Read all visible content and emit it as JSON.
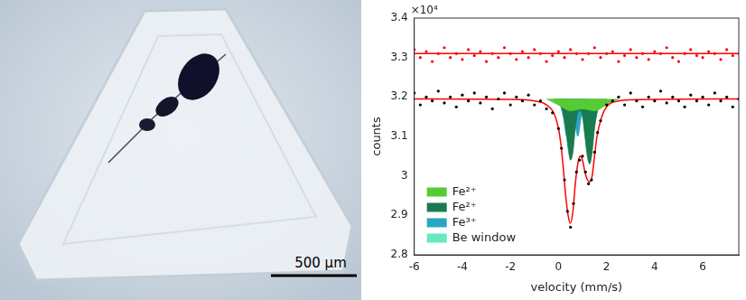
{
  "image": {
    "scale_bar_label": "500 μm"
  },
  "chart_data": {
    "type": "scatter",
    "x_label": "velocity (mm/s)",
    "y_label": "counts",
    "y_exponent_label": "×10⁴",
    "xlim": [
      -6,
      7.5
    ],
    "xticks": [
      -6,
      -4,
      -2,
      0,
      2,
      4,
      6
    ],
    "ylim": [
      2.8,
      3.4
    ],
    "yticks": [
      2.8,
      2.9,
      3,
      3.1,
      3.2,
      3.3,
      3.4
    ],
    "grid": false,
    "legend": "lower left",
    "series": [
      {
        "type": "scatter",
        "marker": "dot",
        "color": "#000000",
        "x": [
          -6,
          -5.75,
          -5.5,
          -5.25,
          -5,
          -4.75,
          -4.5,
          -4.25,
          -4,
          -3.75,
          -3.5,
          -3.25,
          -3,
          -2.75,
          -2.5,
          -2.25,
          -2,
          -1.75,
          -1.5,
          -1.25,
          -1,
          -0.75,
          -0.5,
          -0.25,
          0,
          0.125,
          0.25,
          0.375,
          0.5,
          0.625,
          0.75,
          0.875,
          1,
          1.125,
          1.25,
          1.375,
          1.5,
          1.625,
          1.75,
          2,
          2.25,
          2.5,
          2.75,
          3,
          3.25,
          3.5,
          3.75,
          4,
          4.25,
          4.5,
          4.75,
          5,
          5.25,
          5.5,
          5.75,
          6,
          6.25,
          6.5,
          6.75,
          7,
          7.25,
          7.5
        ],
        "values": [
          3.21,
          3.18,
          3.2,
          3.19,
          3.215,
          3.185,
          3.2,
          3.175,
          3.205,
          3.19,
          3.21,
          3.185,
          3.2,
          3.17,
          3.195,
          3.21,
          3.18,
          3.2,
          3.19,
          3.205,
          3.18,
          3.19,
          3.17,
          3.16,
          3.12,
          3.07,
          2.99,
          2.91,
          2.87,
          2.93,
          3.01,
          3.04,
          3.05,
          3.01,
          2.98,
          2.99,
          3.06,
          3.11,
          3.14,
          3.18,
          3.19,
          3.2,
          3.18,
          3.21,
          3.19,
          3.175,
          3.2,
          3.19,
          3.215,
          3.185,
          3.2,
          3.19,
          3.175,
          3.205,
          3.19,
          3.2,
          3.18,
          3.21,
          3.19,
          3.2,
          3.175,
          3.195
        ]
      },
      {
        "type": "scatter",
        "marker": "dot",
        "color": "#ff0000",
        "x": [
          -6,
          -5.75,
          -5.5,
          -5.25,
          -5,
          -4.75,
          -4.5,
          -4.25,
          -4,
          -3.75,
          -3.5,
          -3.25,
          -3,
          -2.75,
          -2.5,
          -2.25,
          -2,
          -1.75,
          -1.5,
          -1.25,
          -1,
          -0.75,
          -0.5,
          -0.25,
          0,
          0.25,
          0.5,
          0.75,
          1,
          1.25,
          1.5,
          1.75,
          2,
          2.25,
          2.5,
          2.75,
          3,
          3.25,
          3.5,
          3.75,
          4,
          4.25,
          4.5,
          4.75,
          5,
          5.25,
          5.5,
          5.75,
          6,
          6.25,
          6.5,
          6.75,
          7,
          7.25,
          7.5
        ],
        "values": [
          3.32,
          3.3,
          3.315,
          3.29,
          3.31,
          3.325,
          3.3,
          3.31,
          3.295,
          3.32,
          3.305,
          3.315,
          3.29,
          3.31,
          3.3,
          3.325,
          3.31,
          3.295,
          3.315,
          3.3,
          3.32,
          3.31,
          3.29,
          3.305,
          3.315,
          3.3,
          3.32,
          3.31,
          3.295,
          3.31,
          3.325,
          3.3,
          3.31,
          3.315,
          3.29,
          3.305,
          3.32,
          3.3,
          3.31,
          3.295,
          3.315,
          3.31,
          3.325,
          3.3,
          3.29,
          3.31,
          3.32,
          3.305,
          3.3,
          3.315,
          3.31,
          3.295,
          3.32,
          3.305,
          3.31
        ]
      },
      {
        "type": "line",
        "line_style": "solid",
        "color": "#ff0000",
        "x": [
          -6,
          7.5
        ],
        "values": [
          3.31,
          3.31
        ]
      },
      {
        "type": "line",
        "line_style": "solid",
        "color": "#ff0000",
        "x": [
          -6,
          -2,
          -1,
          -0.5,
          -0.2,
          0,
          0.1,
          0.2,
          0.3,
          0.4,
          0.5,
          0.6,
          0.7,
          0.8,
          0.9,
          1,
          1.1,
          1.2,
          1.3,
          1.4,
          1.5,
          1.6,
          1.8,
          2,
          2.5,
          3,
          7.5
        ],
        "values": [
          3.195,
          3.194,
          3.19,
          3.18,
          3.16,
          3.12,
          3.08,
          3.02,
          2.95,
          2.9,
          2.88,
          2.91,
          2.98,
          3.03,
          3.05,
          3.04,
          3.01,
          2.99,
          2.985,
          3,
          3.05,
          3.1,
          3.15,
          3.175,
          3.19,
          3.193,
          3.195
        ]
      },
      {
        "type": "area",
        "name": "Fe²⁺",
        "color": "#55cc33",
        "x": [
          -0.5,
          0,
          0.5,
          1,
          1.5,
          2,
          2.5
        ],
        "values": [
          3.195,
          3.18,
          3.165,
          3.17,
          3.165,
          3.18,
          3.195
        ]
      },
      {
        "type": "area",
        "name": "Fe²⁺",
        "color": "#1a7a50",
        "x": [
          -0.2,
          0.1,
          0.3,
          0.4,
          0.5,
          0.6,
          0.7,
          0.8,
          0.9,
          1,
          1.1,
          1.2,
          1.3,
          1.4,
          1.5,
          1.7,
          2
        ],
        "values": [
          3.195,
          3.18,
          3.12,
          3.07,
          3.04,
          3.06,
          3.12,
          3.16,
          3.165,
          3.15,
          3.1,
          3.05,
          3.03,
          3.06,
          3.12,
          3.18,
          3.195
        ]
      },
      {
        "type": "area",
        "name": "Fe³⁺",
        "color": "#2aa6c0",
        "x": [
          0,
          0.2,
          0.35,
          0.5,
          0.6,
          0.7,
          0.8,
          0.95,
          1.2
        ],
        "values": [
          3.195,
          3.15,
          3.1,
          3.14,
          3.16,
          3.13,
          3.1,
          3.15,
          3.195
        ]
      },
      {
        "type": "area",
        "name": "Be window",
        "color": "#66e8c0",
        "x": [
          -0.3,
          0,
          0.2,
          0.4,
          0.6
        ],
        "values": [
          3.195,
          3.18,
          3.175,
          3.185,
          3.195
        ]
      }
    ]
  }
}
